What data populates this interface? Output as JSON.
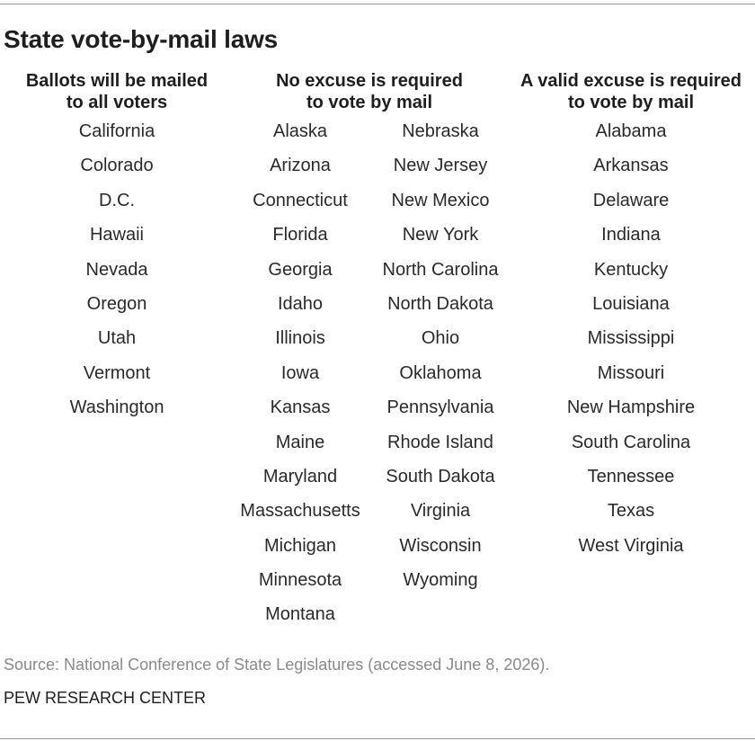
{
  "title": "State vote-by-mail laws",
  "columns": {
    "mailed": {
      "heading_line1": "Ballots will be mailed",
      "heading_line2": "to all voters",
      "states": [
        "California",
        "Colorado",
        "D.C.",
        "Hawaii",
        "Nevada",
        "Oregon",
        "Utah",
        "Vermont",
        "Washington"
      ]
    },
    "no_excuse": {
      "heading_line1": "No excuse is required",
      "heading_line2": "to vote by mail",
      "states_left": [
        "Alaska",
        "Arizona",
        "Connecticut",
        "Florida",
        "Georgia",
        "Idaho",
        "Illinois",
        "Iowa",
        "Kansas",
        "Maine",
        "Maryland",
        "Massachusetts",
        "Michigan",
        "Minnesota",
        "Montana"
      ],
      "states_right": [
        "Nebraska",
        "New Jersey",
        "New Mexico",
        "New York",
        "North Carolina",
        "North Dakota",
        "Ohio",
        "Oklahoma",
        "Pennsylvania",
        "Rhode Island",
        "South Dakota",
        "Virginia",
        "Wisconsin",
        "Wyoming"
      ]
    },
    "excuse": {
      "heading_line1": "A valid excuse is required",
      "heading_line2": "to vote by mail",
      "states": [
        "Alabama",
        "Arkansas",
        "Delaware",
        "Indiana",
        "Kentucky",
        "Louisiana",
        "Mississippi",
        "Missouri",
        "New Hampshire",
        "South Carolina",
        "Tennessee",
        "Texas",
        "West Virginia"
      ]
    }
  },
  "source": "Source: National Conference of State Legislatures (accessed June 8, 2026).",
  "credit": "PEW RESEARCH CENTER"
}
